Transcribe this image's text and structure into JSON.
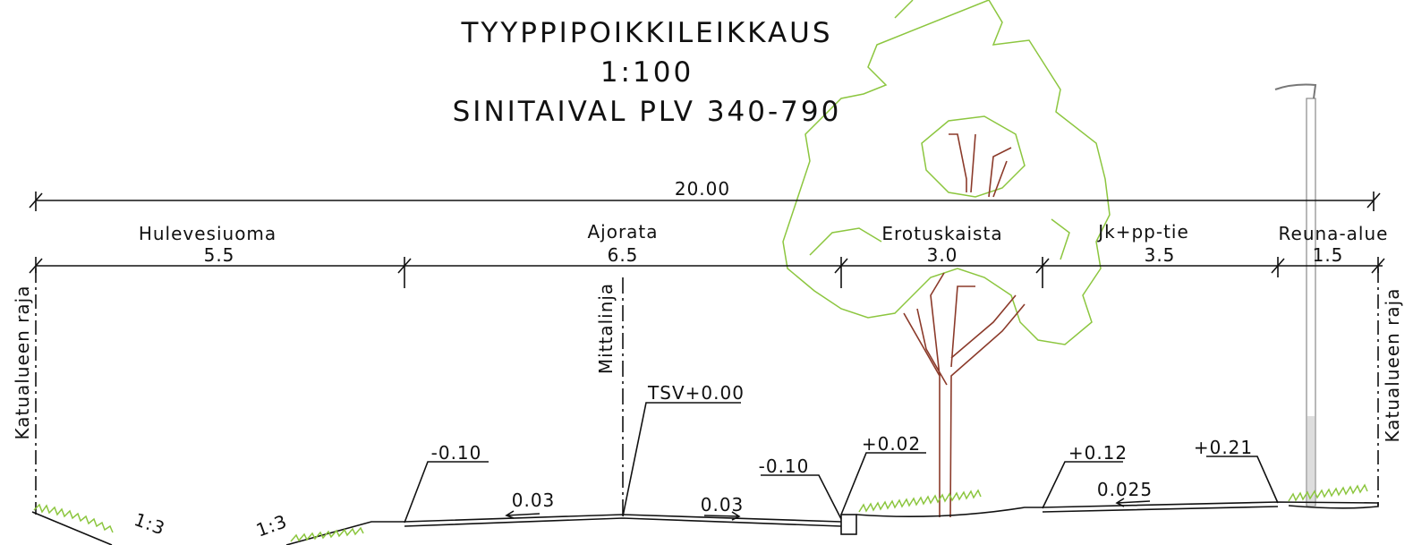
{
  "title": {
    "line1": "TYYPPIPOIKKILEIKKAUS",
    "line2": "1:100",
    "line3": "SINITAIVAL PLV 340-790"
  },
  "total_width": "20.00",
  "sections": [
    {
      "name": "Hulevesiuoma",
      "width": "5.5"
    },
    {
      "name": "Ajorata",
      "width": "6.5"
    },
    {
      "name": "Erotuskaista",
      "width": "3.0"
    },
    {
      "name": "Jk+pp-tie",
      "width": "3.5"
    },
    {
      "name": "Reuna-alue",
      "width": "1.5"
    }
  ],
  "boundary_left": "Katualueen raja",
  "boundary_right": "Katualueen raja",
  "centerline": "Mittalinja",
  "elevations": [
    "-0.10",
    "TSV+0.00",
    "-0.10",
    "+0.02",
    "+0.12",
    "+0.21"
  ],
  "slopes": [
    "0.03",
    "0.03",
    "0.025",
    "1:3",
    "1:3"
  ]
}
